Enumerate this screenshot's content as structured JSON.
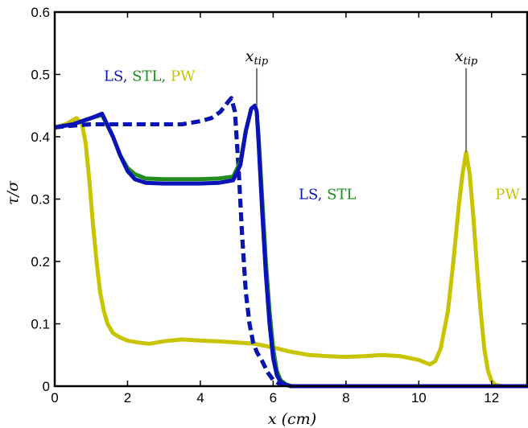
{
  "chart_data": {
    "type": "line",
    "xlabel": "x (cm)",
    "ylabel": "τ/σ",
    "xlim": [
      0,
      13
    ],
    "ylim": [
      0,
      0.6
    ],
    "xticks": [
      "0",
      "2",
      "4",
      "6",
      "8",
      "10",
      "12"
    ],
    "yticks": [
      "0",
      "0.1",
      "0.2",
      "0.3",
      "0.4",
      "0.5",
      "0.6"
    ],
    "grid": false,
    "colors": {
      "LS": "#0a12b8",
      "STL": "#1f8c1f",
      "PW": "#c8c400"
    },
    "series": [
      {
        "name": "PW",
        "style": "solid",
        "x": [
          0,
          0.3,
          0.6,
          0.75,
          0.85,
          0.95,
          1.05,
          1.15,
          1.25,
          1.35,
          1.45,
          1.6,
          1.8,
          2.0,
          2.3,
          2.6,
          3.0,
          3.5,
          4.0,
          4.5,
          5.0,
          5.5,
          6.0,
          6.5,
          7.0,
          7.5,
          8.0,
          8.5,
          9.0,
          9.5,
          10.0,
          10.3,
          10.45,
          10.6,
          10.8,
          10.95,
          11.1,
          11.2,
          11.3,
          11.4,
          11.5,
          11.6,
          11.7,
          11.8,
          11.9,
          12.0,
          12.1,
          12.3,
          12.6,
          13.0
        ],
        "y": [
          0.415,
          0.42,
          0.43,
          0.42,
          0.39,
          0.33,
          0.26,
          0.2,
          0.15,
          0.12,
          0.1,
          0.085,
          0.078,
          0.073,
          0.07,
          0.068,
          0.072,
          0.075,
          0.073,
          0.072,
          0.07,
          0.068,
          0.062,
          0.055,
          0.05,
          0.048,
          0.047,
          0.048,
          0.05,
          0.048,
          0.042,
          0.035,
          0.04,
          0.06,
          0.12,
          0.2,
          0.29,
          0.34,
          0.375,
          0.34,
          0.27,
          0.19,
          0.12,
          0.06,
          0.025,
          0.008,
          0.002,
          0.0,
          0.0,
          0.0
        ]
      },
      {
        "name": "PW",
        "style": "dashed",
        "x": [
          0,
          0.5,
          1.0,
          1.5,
          2.0,
          2.5,
          3.0,
          3.5,
          4.0,
          4.3,
          4.55,
          4.75,
          4.85,
          4.95,
          5.05,
          5.15,
          5.25,
          5.35,
          5.45,
          5.55,
          5.7,
          5.85,
          6.0,
          6.2,
          6.5,
          7.0,
          8.0,
          10.0,
          13.0
        ],
        "y": [
          0.415,
          0.418,
          0.42,
          0.42,
          0.42,
          0.42,
          0.42,
          0.42,
          0.425,
          0.43,
          0.44,
          0.455,
          0.462,
          0.44,
          0.35,
          0.24,
          0.15,
          0.1,
          0.07,
          0.055,
          0.04,
          0.022,
          0.01,
          0.003,
          0.0,
          0.0,
          0.0,
          0.0,
          0.0
        ]
      },
      {
        "name": "STL",
        "style": "dashed",
        "x": [
          0,
          0.5,
          1.0,
          1.5,
          2.0,
          2.5,
          3.0,
          3.5,
          4.0,
          4.3,
          4.55,
          4.75,
          4.85,
          4.95,
          5.05,
          5.15,
          5.25,
          5.35,
          5.45,
          5.55,
          5.7,
          5.85,
          6.0,
          6.2,
          6.5,
          7.0,
          8.0,
          10.0,
          13.0
        ],
        "y": [
          0.415,
          0.418,
          0.42,
          0.42,
          0.42,
          0.42,
          0.42,
          0.42,
          0.425,
          0.43,
          0.44,
          0.455,
          0.462,
          0.44,
          0.35,
          0.24,
          0.15,
          0.1,
          0.07,
          0.055,
          0.04,
          0.022,
          0.01,
          0.003,
          0.0,
          0.0,
          0.0,
          0.0,
          0.0
        ]
      },
      {
        "name": "LS",
        "style": "dashed",
        "x": [
          0,
          0.5,
          1.0,
          1.5,
          2.0,
          2.5,
          3.0,
          3.5,
          4.0,
          4.3,
          4.55,
          4.75,
          4.85,
          4.95,
          5.05,
          5.15,
          5.25,
          5.35,
          5.45,
          5.55,
          5.7,
          5.85,
          6.0,
          6.2,
          6.5,
          7.0,
          8.0,
          10.0,
          13.0
        ],
        "y": [
          0.415,
          0.418,
          0.42,
          0.42,
          0.42,
          0.42,
          0.42,
          0.42,
          0.425,
          0.43,
          0.44,
          0.455,
          0.462,
          0.44,
          0.35,
          0.24,
          0.15,
          0.1,
          0.07,
          0.055,
          0.04,
          0.022,
          0.01,
          0.003,
          0.0,
          0.0,
          0.0,
          0.0,
          0.0
        ]
      },
      {
        "name": "STL",
        "style": "solid",
        "x": [
          0,
          0.5,
          1.0,
          1.3,
          1.6,
          1.8,
          2.0,
          2.2,
          2.5,
          3.0,
          3.5,
          4.0,
          4.5,
          4.9,
          5.1,
          5.25,
          5.4,
          5.5,
          5.55,
          5.6,
          5.7,
          5.8,
          5.9,
          6.0,
          6.1,
          6.2,
          6.35,
          6.5,
          7.0,
          8.0,
          10.0,
          13.0
        ],
        "y": [
          0.415,
          0.42,
          0.43,
          0.435,
          0.4,
          0.37,
          0.35,
          0.34,
          0.333,
          0.332,
          0.332,
          0.332,
          0.333,
          0.336,
          0.36,
          0.41,
          0.445,
          0.45,
          0.44,
          0.4,
          0.3,
          0.2,
          0.12,
          0.06,
          0.025,
          0.01,
          0.003,
          0.0,
          0.0,
          0.0,
          0.0,
          0.0
        ]
      },
      {
        "name": "LS",
        "style": "solid",
        "x": [
          0,
          0.5,
          1.0,
          1.3,
          1.6,
          1.8,
          2.0,
          2.2,
          2.5,
          3.0,
          3.5,
          4.0,
          4.5,
          4.9,
          5.1,
          5.25,
          5.4,
          5.5,
          5.55,
          5.6,
          5.7,
          5.8,
          5.9,
          6.0,
          6.1,
          6.2,
          6.35,
          6.5,
          7.0,
          8.0,
          10.0,
          13.0
        ],
        "y": [
          0.415,
          0.42,
          0.43,
          0.437,
          0.4,
          0.37,
          0.345,
          0.332,
          0.326,
          0.325,
          0.325,
          0.325,
          0.326,
          0.33,
          0.355,
          0.41,
          0.445,
          0.45,
          0.44,
          0.39,
          0.28,
          0.18,
          0.1,
          0.045,
          0.018,
          0.007,
          0.002,
          0.0,
          0.0,
          0.0,
          0.0,
          0.0
        ]
      }
    ],
    "markers": [
      {
        "label": "x_tip",
        "x": 5.55,
        "y_from": 0.45,
        "y_to": 0.51
      },
      {
        "label": "x_tip",
        "x": 11.3,
        "y_from": 0.375,
        "y_to": 0.51
      }
    ],
    "annotations": [
      {
        "parts": [
          {
            "text": "LS,",
            "series": "LS"
          },
          {
            "text": " STL,",
            "series": "STL"
          },
          {
            "text": " PW",
            "series": "PW"
          }
        ],
        "x": 1.35,
        "y": 0.49
      },
      {
        "parts": [
          {
            "text": "LS,",
            "series": "LS"
          },
          {
            "text": " STL",
            "series": "STL"
          }
        ],
        "x": 6.7,
        "y": 0.3
      },
      {
        "parts": [
          {
            "text": "PW",
            "series": "PW"
          }
        ],
        "x": 12.1,
        "y": 0.3
      }
    ]
  }
}
